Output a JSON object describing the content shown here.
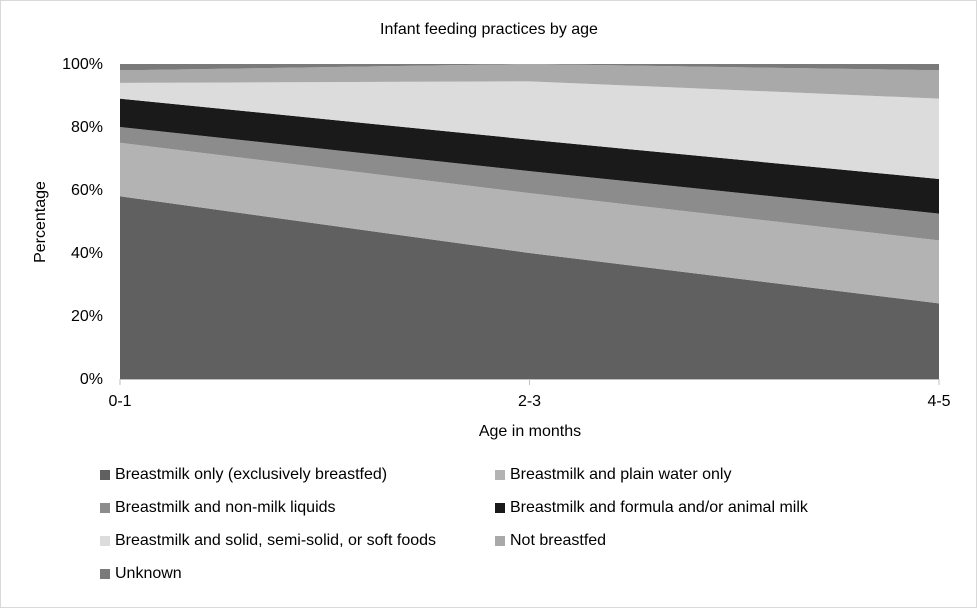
{
  "chart_data": {
    "type": "area",
    "stacked": true,
    "title": "Infant feeding practices by age",
    "xlabel": "Age in months",
    "ylabel": "Percentage",
    "categories": [
      "0-1",
      "2-3",
      "4-5"
    ],
    "ylim": [
      0,
      100
    ],
    "yticks": [
      "0%",
      "20%",
      "40%",
      "60%",
      "80%",
      "100%"
    ],
    "grid": false,
    "legend_position": "bottom",
    "series": [
      {
        "name": "Breastmilk only (exclusively breastfed)",
        "values": [
          58,
          40,
          24
        ],
        "color": "#606060"
      },
      {
        "name": "Breastmilk and plain water only",
        "values": [
          17,
          19,
          20
        ],
        "color": "#b3b3b3"
      },
      {
        "name": "Breastmilk and non-milk liquids",
        "values": [
          5,
          7,
          8.5
        ],
        "color": "#8c8c8c"
      },
      {
        "name": "Breastmilk and formula and/or animal milk",
        "values": [
          9,
          10,
          11
        ],
        "color": "#1a1a1a"
      },
      {
        "name": "Breastmilk and solid, semi-solid, or soft foods",
        "values": [
          5,
          18.5,
          25.5
        ],
        "color": "#dcdcdc"
      },
      {
        "name": "Not breastfed",
        "values": [
          4,
          5.5,
          9
        ],
        "color": "#a9a9a9"
      },
      {
        "name": "Unknown",
        "values": [
          2,
          0,
          2
        ],
        "color": "#7a7a7a"
      }
    ]
  }
}
